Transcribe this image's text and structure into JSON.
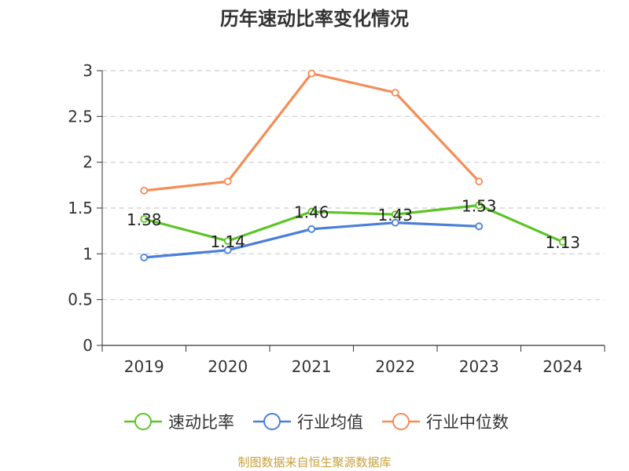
{
  "chart_data": {
    "type": "line",
    "title": "历年速动比率变化情况",
    "categories": [
      "2019",
      "2020",
      "2021",
      "2022",
      "2023",
      "2024"
    ],
    "ylim": [
      0,
      3
    ],
    "yticks": [
      "0",
      "0.5",
      "1",
      "1.5",
      "2",
      "2.5",
      "3"
    ],
    "grid": true,
    "legend_position": "bottom",
    "series": [
      {
        "name": "速动比率",
        "color": "#5cc426",
        "values": [
          1.38,
          1.14,
          1.46,
          1.43,
          1.53,
          1.13
        ],
        "labels": [
          "1.38",
          "1.14",
          "1.46",
          "1.43",
          "1.53",
          "1.13"
        ]
      },
      {
        "name": "行业均值",
        "color": "#4a7fd8",
        "values": [
          0.96,
          1.04,
          1.27,
          1.34,
          1.3,
          null
        ]
      },
      {
        "name": "行业中位数",
        "color": "#f58c55",
        "values": [
          1.69,
          1.79,
          2.97,
          2.76,
          1.79,
          null
        ]
      }
    ]
  },
  "footer": {
    "source": "制图数据来自恒生聚源数据库"
  }
}
